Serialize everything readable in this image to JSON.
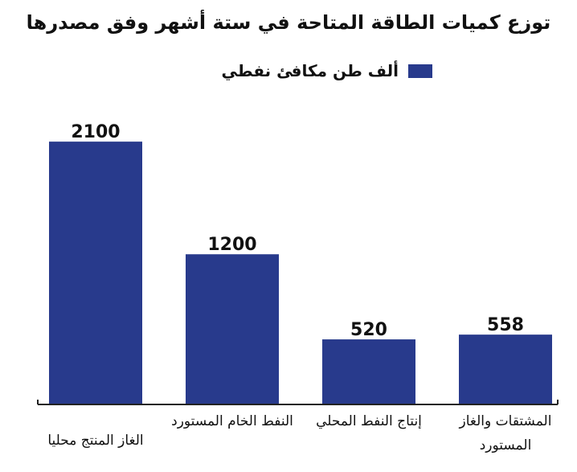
{
  "chart_data": {
    "type": "bar",
    "title": "توزع كميات الطاقة المتاحة في ستة أشهر وفق مصدرها",
    "legend": {
      "position": "top-right",
      "entries": [
        "ألف طن مكافئ نفطي"
      ]
    },
    "series": [
      {
        "name": "ألف طن مكافئ نفطي",
        "values": [
          2100,
          1200,
          520,
          558
        ]
      }
    ],
    "categories": [
      "الغاز المنتج محليا",
      "النفط الخام المستورد",
      "إنتاج النفط المحلي",
      "المشتقات والغاز المستورد"
    ],
    "ylim": [
      0,
      2300
    ],
    "grid": false,
    "data_labels": true,
    "colors": {
      "bar": "#283a8c"
    }
  }
}
